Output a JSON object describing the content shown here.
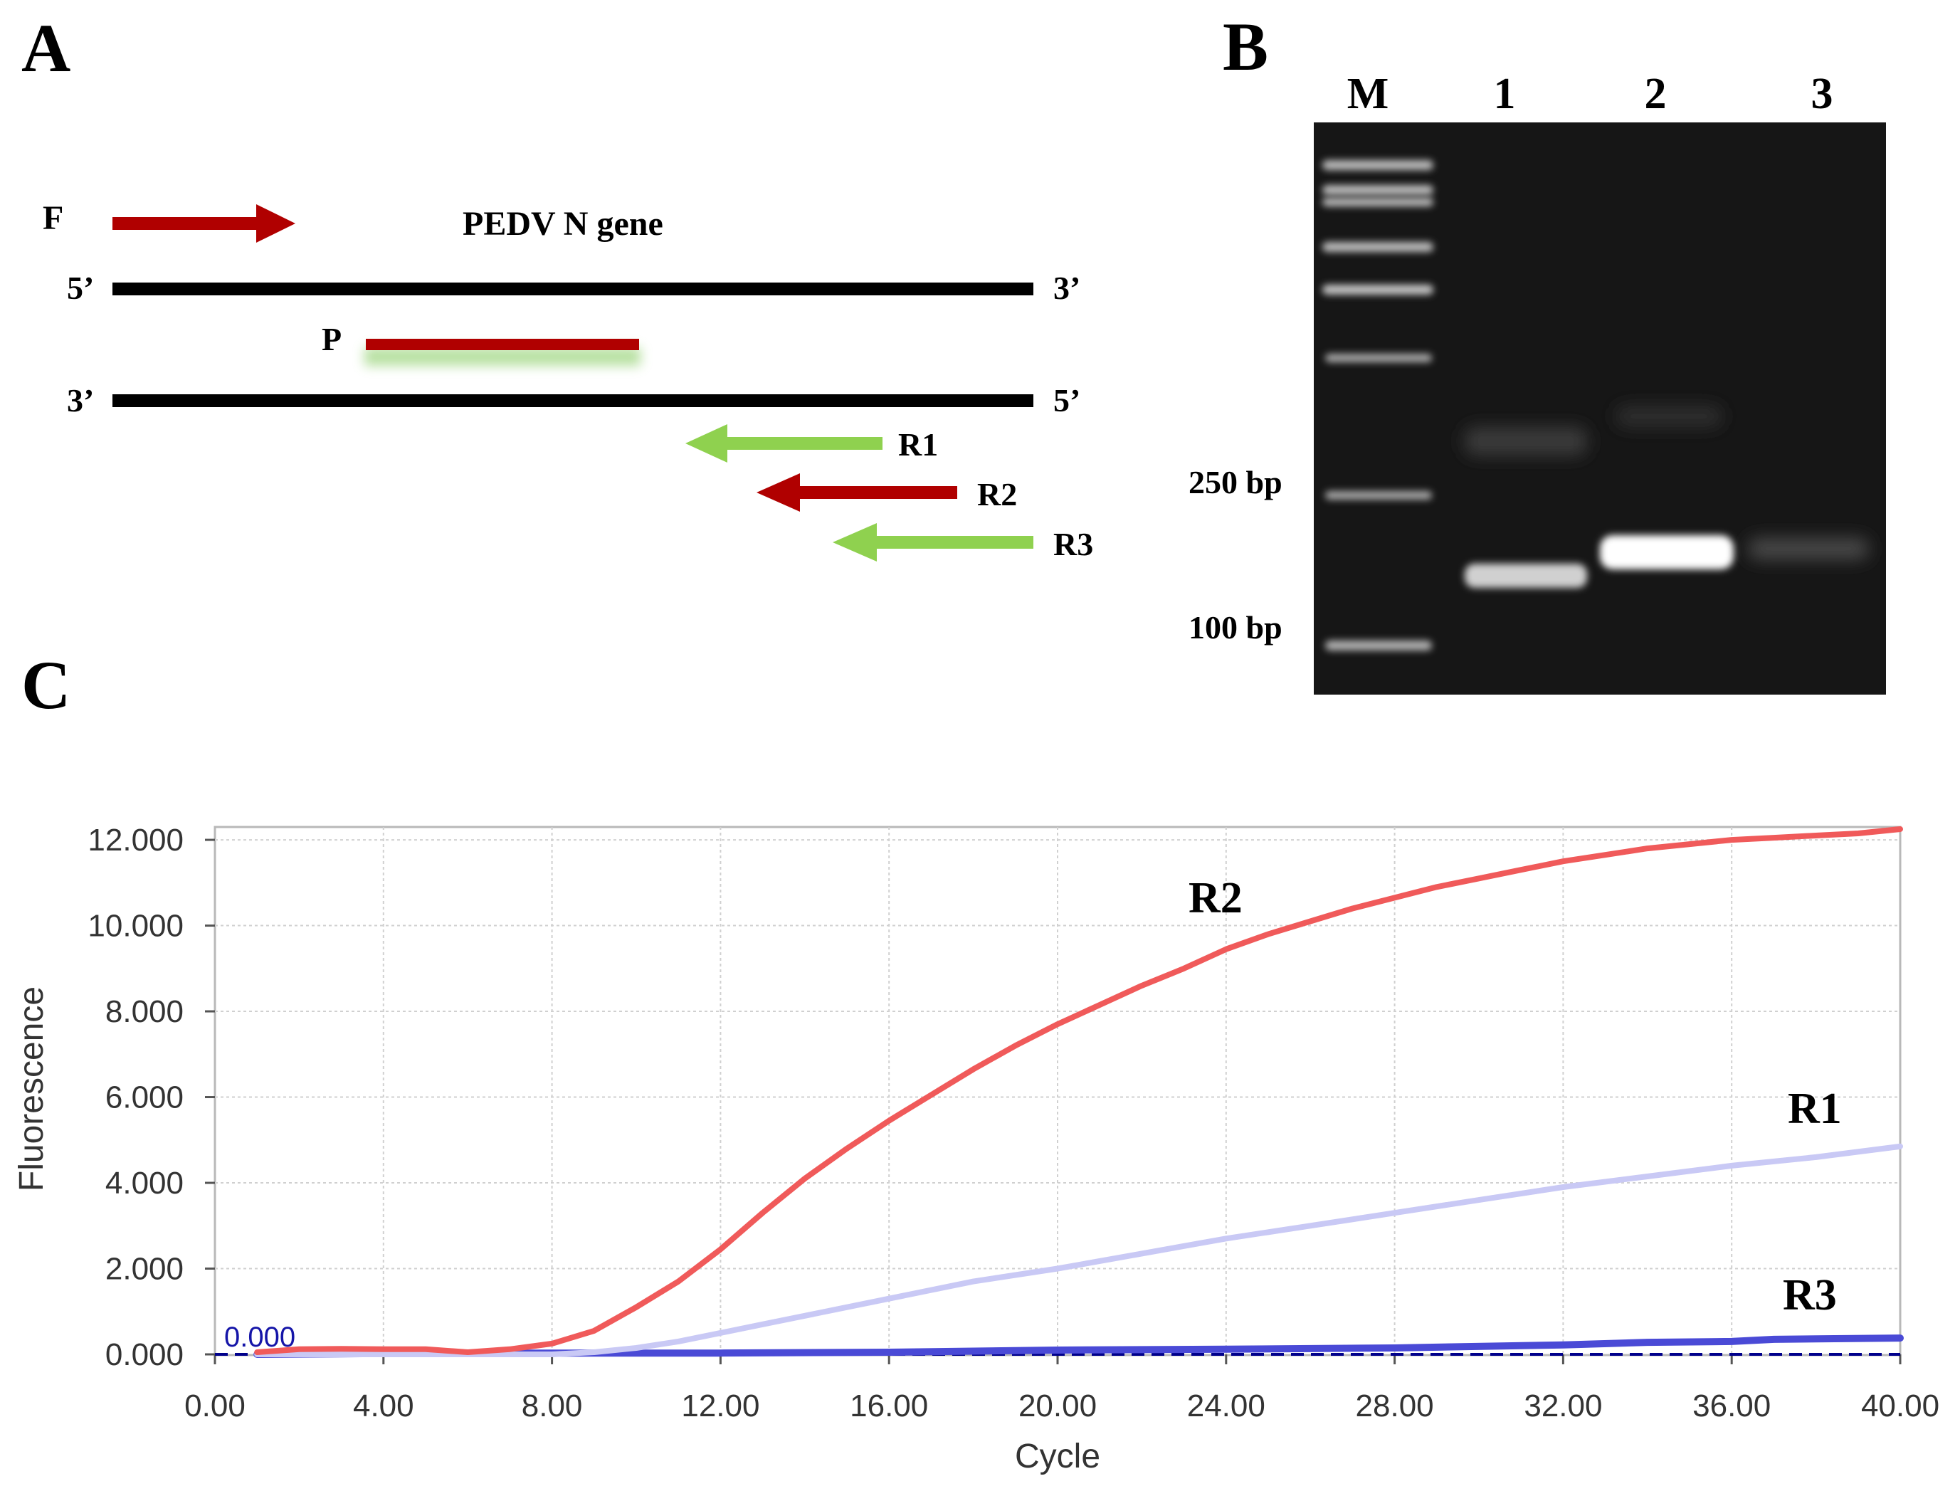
{
  "panel_a": {
    "label": "A",
    "gene_label": "PEDV N gene",
    "strand_top": {
      "left": "5’",
      "right": "3’"
    },
    "strand_bottom": {
      "left": "3’",
      "right": "5’"
    },
    "primers": {
      "forward": "F",
      "probe": "P",
      "r1": "R1",
      "r2": "R2",
      "r3": "R3"
    },
    "colors": {
      "red": "#b00000",
      "green": "#8fd14f",
      "strand": "#000000"
    }
  },
  "panel_b": {
    "label": "B",
    "lanes": [
      "M",
      "1",
      "2",
      "3"
    ],
    "markers": [
      "250 bp",
      "100 bp"
    ]
  },
  "chart_data": {
    "type": "line",
    "panel_label": "C",
    "xlabel": "Cycle",
    "ylabel": "Fluorescence",
    "xlim": [
      0,
      40
    ],
    "ylim": [
      0,
      12.3
    ],
    "xticks": [
      "0.00",
      "4.00",
      "8.00",
      "12.00",
      "16.00",
      "20.00",
      "24.00",
      "28.00",
      "32.00",
      "36.00",
      "40.00"
    ],
    "yticks": [
      "0.000",
      "2.000",
      "4.000",
      "6.000",
      "8.000",
      "10.000",
      "12.000"
    ],
    "threshold": {
      "value": 0.0,
      "label": "0.000"
    },
    "grid": true,
    "series": [
      {
        "name": "R2",
        "color": "#f05a5a",
        "x": [
          1,
          2,
          3,
          4,
          5,
          6,
          7,
          8,
          9,
          10,
          11,
          12,
          13,
          14,
          15,
          16,
          17,
          18,
          19,
          20,
          21,
          22,
          23,
          24,
          25,
          26,
          27,
          28,
          29,
          30,
          31,
          32,
          33,
          34,
          35,
          36,
          37,
          38,
          39,
          40
        ],
        "y": [
          0.05,
          0.12,
          0.13,
          0.12,
          0.12,
          0.05,
          0.12,
          0.25,
          0.55,
          1.1,
          1.7,
          2.45,
          3.3,
          4.1,
          4.8,
          5.45,
          6.05,
          6.65,
          7.2,
          7.7,
          8.15,
          8.6,
          9.0,
          9.45,
          9.8,
          10.1,
          10.4,
          10.65,
          10.9,
          11.1,
          11.3,
          11.5,
          11.65,
          11.8,
          11.9,
          12.0,
          12.05,
          12.1,
          12.15,
          12.25
        ]
      },
      {
        "name": "R1",
        "color": "#c9c9f5",
        "x": [
          1,
          4,
          8,
          9,
          10,
          11,
          12,
          13,
          14,
          16,
          18,
          20,
          22,
          24,
          26,
          28,
          30,
          32,
          34,
          36,
          38,
          40
        ],
        "y": [
          0.0,
          0.0,
          0.0,
          0.05,
          0.15,
          0.3,
          0.5,
          0.7,
          0.9,
          1.3,
          1.7,
          2.0,
          2.35,
          2.7,
          3.0,
          3.3,
          3.6,
          3.9,
          4.15,
          4.4,
          4.6,
          4.85
        ]
      },
      {
        "name": "R3",
        "color": "#4a4ad6",
        "x": [
          1,
          4,
          8,
          12,
          16,
          20,
          24,
          28,
          32,
          34,
          36,
          37,
          38,
          40
        ],
        "y": [
          0.0,
          0.02,
          0.03,
          0.03,
          0.05,
          0.1,
          0.12,
          0.15,
          0.22,
          0.28,
          0.3,
          0.35,
          0.36,
          0.38
        ]
      }
    ]
  }
}
